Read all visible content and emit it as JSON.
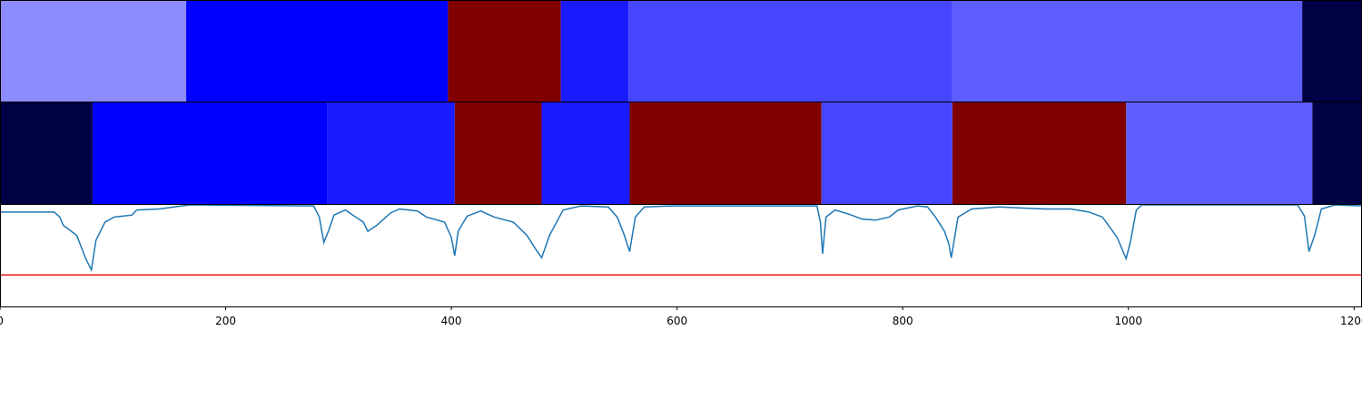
{
  "chart_data": {
    "type": "segmentation",
    "xlim": [
      0,
      1207
    ],
    "xticks": [
      0,
      200,
      400,
      600,
      800,
      1000,
      1200
    ],
    "bands": [
      {
        "segments": [
          {
            "start": 0,
            "end": 165,
            "color": "#8c8cff"
          },
          {
            "start": 165,
            "end": 397,
            "color": "#0000ff"
          },
          {
            "start": 397,
            "end": 497,
            "color": "#800000"
          },
          {
            "start": 497,
            "end": 557,
            "color": "#1a1aff"
          },
          {
            "start": 557,
            "end": 844,
            "color": "#4646ff"
          },
          {
            "start": 844,
            "end": 1154,
            "color": "#5e5eff"
          },
          {
            "start": 1154,
            "end": 1207,
            "color": "#000044"
          }
        ]
      },
      {
        "segments": [
          {
            "start": 0,
            "end": 82,
            "color": "#000044"
          },
          {
            "start": 82,
            "end": 290,
            "color": "#0000ff"
          },
          {
            "start": 290,
            "end": 403,
            "color": "#1a1aff"
          },
          {
            "start": 403,
            "end": 480,
            "color": "#800000"
          },
          {
            "start": 480,
            "end": 558,
            "color": "#1a1aff"
          },
          {
            "start": 558,
            "end": 728,
            "color": "#800000"
          },
          {
            "start": 728,
            "end": 844,
            "color": "#4646ff"
          },
          {
            "start": 844,
            "end": 998,
            "color": "#800000"
          },
          {
            "start": 998,
            "end": 1163,
            "color": "#5e5eff"
          },
          {
            "start": 1163,
            "end": 1207,
            "color": "#000044"
          }
        ]
      }
    ],
    "line": {
      "color": "#1f77b4",
      "ylim": [
        0,
        1
      ],
      "threshold": 0.31,
      "threshold_color": "#e41a1c",
      "x": [
        0,
        48,
        53,
        56,
        68,
        76,
        81,
        85,
        93,
        101,
        117,
        121,
        141,
        161,
        169,
        278,
        283,
        287,
        291,
        296,
        306,
        314,
        322,
        326,
        334,
        346,
        354,
        370,
        378,
        394,
        400,
        403,
        406,
        414,
        426,
        438,
        455,
        467,
        475,
        480,
        487,
        499,
        515,
        539,
        547,
        553,
        558,
        563,
        571,
        595,
        724,
        727,
        729,
        732,
        740,
        752,
        764,
        776,
        788,
        796,
        813,
        822,
        829,
        837,
        841,
        843,
        849,
        861,
        885,
        925,
        949,
        965,
        977,
        990,
        998,
        1002,
        1007,
        1012,
        1150,
        1156,
        1160,
        1165,
        1171,
        1183,
        1207
      ],
      "values": [
        0.93,
        0.93,
        0.88,
        0.8,
        0.7,
        0.47,
        0.36,
        0.65,
        0.83,
        0.88,
        0.9,
        0.95,
        0.96,
        0.99,
        1.0,
        0.99,
        0.88,
        0.63,
        0.74,
        0.9,
        0.95,
        0.89,
        0.83,
        0.74,
        0.8,
        0.92,
        0.96,
        0.94,
        0.88,
        0.83,
        0.68,
        0.5,
        0.74,
        0.89,
        0.94,
        0.88,
        0.83,
        0.7,
        0.56,
        0.48,
        0.7,
        0.95,
        0.99,
        0.98,
        0.88,
        0.71,
        0.54,
        0.88,
        0.98,
        0.99,
        0.99,
        0.83,
        0.52,
        0.88,
        0.95,
        0.91,
        0.86,
        0.85,
        0.88,
        0.95,
        0.99,
        0.98,
        0.88,
        0.74,
        0.61,
        0.48,
        0.88,
        0.96,
        0.98,
        0.96,
        0.96,
        0.93,
        0.88,
        0.68,
        0.47,
        0.65,
        0.95,
        1.0,
        1.0,
        0.89,
        0.54,
        0.7,
        0.96,
        1.0,
        0.99
      ]
    }
  }
}
